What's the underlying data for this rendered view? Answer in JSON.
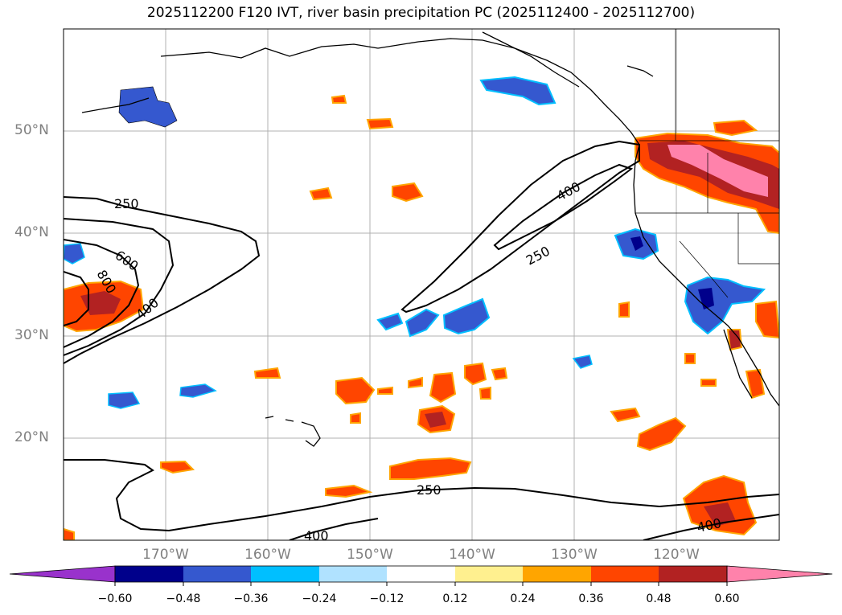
{
  "title": "2025112200 F120 IVT, river basin precipitation PC (2025112400 - 2025112700)",
  "map": {
    "lat_labels": [
      "50°N",
      "40°N",
      "30°N",
      "20°N"
    ],
    "lon_labels": [
      "170°W",
      "160°W",
      "150°W",
      "140°W",
      "130°W",
      "120°W"
    ],
    "contour_labels": [
      "250",
      "600",
      "800",
      "400",
      "400",
      "250",
      "250",
      "400",
      "400"
    ]
  },
  "colorbar": {
    "ticks": [
      "−0.60",
      "−0.48",
      "−0.36",
      "−0.24",
      "−0.12",
      "0.12",
      "0.24",
      "0.36",
      "0.48",
      "0.60"
    ],
    "colors": [
      "#9932cc",
      "#00008b",
      "#3558cf",
      "#00bfff",
      "#b0e2ff",
      "#ffffff",
      "#fff08f",
      "#ffa500",
      "#ff4500",
      "#b22222",
      "#ff82ab"
    ]
  }
}
